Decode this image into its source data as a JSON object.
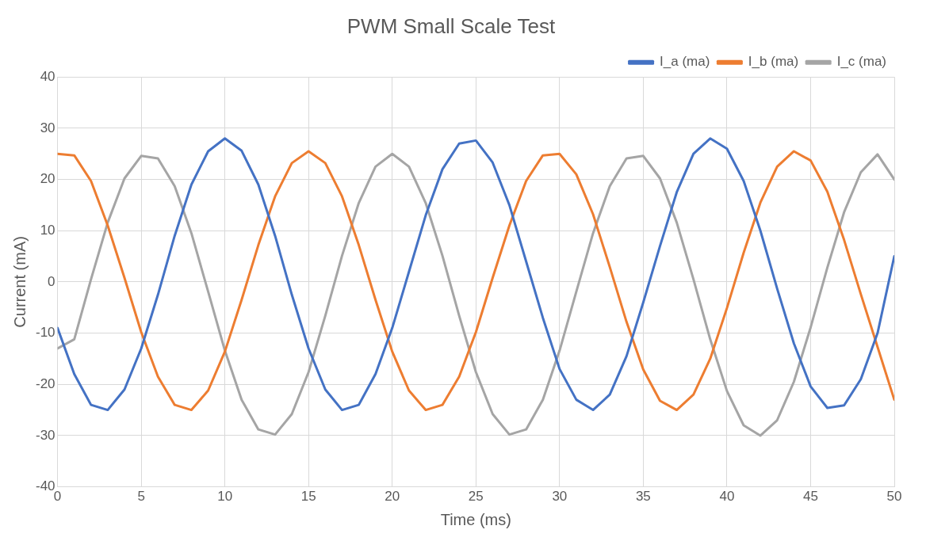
{
  "chart_data": {
    "type": "line",
    "title": "PWM Small Scale Test",
    "xlabel": "Time (ms)",
    "ylabel": "Current (mA)",
    "x": [
      0,
      1,
      2,
      3,
      4,
      5,
      6,
      7,
      8,
      9,
      10,
      11,
      12,
      13,
      14,
      15,
      16,
      17,
      18,
      19,
      20,
      21,
      22,
      23,
      24,
      25,
      26,
      27,
      28,
      29,
      30,
      31,
      32,
      33,
      34,
      35,
      36,
      37,
      38,
      39,
      40,
      41,
      42,
      43,
      44,
      45,
      46,
      47,
      48,
      49,
      50
    ],
    "series": [
      {
        "name": "I_a (ma)",
        "color": "#4472c4",
        "values": [
          -9,
          -18,
          -24,
          -25,
          -21,
          -13,
          -2.5,
          9,
          19,
          25.5,
          28,
          25.6,
          19,
          9,
          -2.5,
          -13,
          -21,
          -25,
          -24,
          -18,
          -9,
          2,
          13,
          22,
          27,
          27.6,
          23.3,
          15,
          4,
          -7,
          -17,
          -23,
          -25,
          -22,
          -14.5,
          -4,
          7,
          17.5,
          25,
          28,
          26,
          19.7,
          10,
          -1.3,
          -12,
          -20.4,
          -24.6,
          -24.1,
          -19,
          -10,
          5
        ]
      },
      {
        "name": "I_b (ma)",
        "color": "#ed7d31",
        "values": [
          25,
          24.7,
          19.7,
          11,
          0.8,
          -9.8,
          -18.5,
          -24,
          -25,
          -21.2,
          -13.6,
          -3.5,
          7.2,
          16.7,
          23.2,
          25.5,
          23.2,
          16.7,
          7.2,
          -3.5,
          -13.6,
          -21.2,
          -25,
          -24,
          -18.5,
          -9.8,
          0.8,
          11,
          19.7,
          24.7,
          25,
          21,
          13.2,
          2.9,
          -7.8,
          -17.1,
          -23.2,
          -25,
          -22,
          -15,
          -5.1,
          5.7,
          15.5,
          22.5,
          25.5,
          23.7,
          17.6,
          8.2,
          -2.4,
          -12.7,
          -23
        ]
      },
      {
        "name": "I_c (ma)",
        "color": "#a5a5a5",
        "values": [
          -13,
          -11.2,
          0.5,
          11.6,
          20.2,
          24.6,
          24.1,
          18.7,
          9.5,
          -1.9,
          -13.4,
          -23,
          -28.8,
          -29.8,
          -25.8,
          -17.6,
          -6.6,
          5.1,
          15.4,
          22.5,
          25,
          22.5,
          15.4,
          5.1,
          -6.6,
          -17.6,
          -25.8,
          -29.8,
          -28.8,
          -23,
          -13.4,
          -1.9,
          9.5,
          18.7,
          24.1,
          24.6,
          20.2,
          11.6,
          0.5,
          -11.2,
          -21.3,
          -28,
          -30,
          -27,
          -19.5,
          -8.9,
          2.8,
          13.6,
          21.4,
          24.9,
          20
        ]
      }
    ],
    "xlim": [
      0,
      50
    ],
    "xticks": [
      0,
      5,
      10,
      15,
      20,
      25,
      30,
      35,
      40,
      45,
      50
    ],
    "ylim": [
      -40,
      40
    ],
    "yticks": [
      -40,
      -30,
      -20,
      -10,
      0,
      10,
      20,
      30,
      40
    ],
    "grid": true,
    "legend": "top right",
    "marker": "none",
    "line_style": "solid"
  }
}
